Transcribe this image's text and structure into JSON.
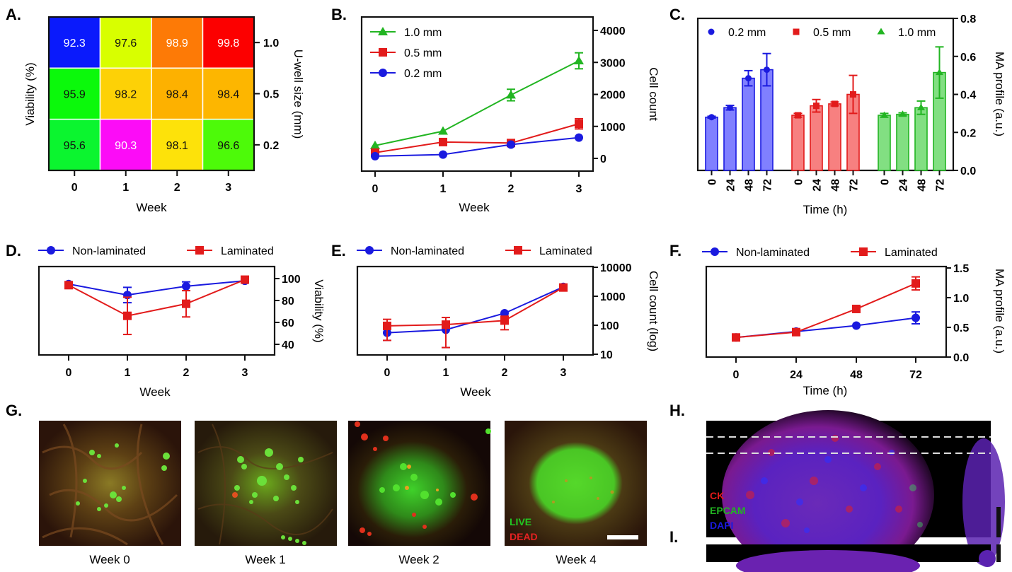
{
  "panel_labels": {
    "A": "A.",
    "B": "B.",
    "C": "C.",
    "D": "D.",
    "E": "E.",
    "F": "F.",
    "G": "G.",
    "H": "H.",
    "I": "I."
  },
  "colors": {
    "blue": "#1a1adf",
    "red": "#e21b1b",
    "green": "#22b522",
    "blue_bar": "#8080ff",
    "red_bar": "#f78080",
    "green_bar": "#82df82"
  },
  "chart_data": [
    {
      "id": "A",
      "type": "heatmap",
      "title": "",
      "xlabel": "Week",
      "ylabel_left": "Viability (%)",
      "ylabel_right": "U-well size (mm)",
      "x_categories": [
        "0",
        "1",
        "2",
        "3"
      ],
      "y_categories": [
        "1.0",
        "0.5",
        "0.2"
      ],
      "values": [
        [
          92.3,
          97.6,
          98.9,
          99.8
        ],
        [
          95.9,
          98.2,
          98.4,
          98.4
        ],
        [
          95.6,
          90.3,
          98.1,
          96.6
        ]
      ],
      "cell_colors": [
        [
          "#0a1afc",
          "#d8ff00",
          "#fd7a06",
          "#fc0000"
        ],
        [
          "#0bf90b",
          "#fdd106",
          "#fdb100",
          "#fdb600"
        ],
        [
          "#0bf52f",
          "#fc0cf7",
          "#fde20a",
          "#4dfa09"
        ]
      ],
      "text_colors": [
        [
          "#ffffff",
          "#111111",
          "#ffffff",
          "#ffffff"
        ],
        [
          "#111111",
          "#111111",
          "#111111",
          "#111111"
        ],
        [
          "#111111",
          "#ffffff",
          "#111111",
          "#111111"
        ]
      ]
    },
    {
      "id": "B",
      "type": "line",
      "xlabel": "Week",
      "ylabel": "Cell count",
      "x": [
        0,
        1,
        2,
        3
      ],
      "x_ticks": [
        "0",
        "1",
        "2",
        "3"
      ],
      "y_ticks": [
        "0",
        "1000",
        "2000",
        "3000",
        "4000"
      ],
      "ylim": [
        -400,
        4400
      ],
      "legend": "top-left",
      "series": [
        {
          "name": "1.0 mm",
          "marker": "triangle",
          "color": "#22b522",
          "values": [
            400,
            850,
            1980,
            3050
          ],
          "errors": [
            0,
            0,
            180,
            250
          ]
        },
        {
          "name": "0.5 mm",
          "marker": "square",
          "color": "#e21b1b",
          "values": [
            180,
            510,
            480,
            1080
          ],
          "errors": [
            0,
            0,
            0,
            160
          ]
        },
        {
          "name": "0.2 mm",
          "marker": "circle",
          "color": "#1a1adf",
          "values": [
            70,
            120,
            430,
            650
          ],
          "errors": [
            0,
            0,
            0,
            0
          ]
        }
      ]
    },
    {
      "id": "C",
      "type": "bar",
      "xlabel": "Time (h)",
      "ylabel": "MA profile (a.u.)",
      "ylim": [
        0,
        0.8
      ],
      "y_ticks": [
        "0.0",
        "0.2",
        "0.4",
        "0.6",
        "0.8"
      ],
      "legend": "top",
      "categories": [
        "0",
        "24",
        "48",
        "72"
      ],
      "series": [
        {
          "name": "0.2 mm",
          "marker": "circle",
          "color": "#1a1adf",
          "fill": "#8080ff",
          "values": [
            0.28,
            0.33,
            0.485,
            0.53
          ],
          "errors": [
            0.005,
            0.012,
            0.04,
            0.085
          ]
        },
        {
          "name": "0.5 mm",
          "marker": "square",
          "color": "#e21b1b",
          "fill": "#f78080",
          "values": [
            0.29,
            0.34,
            0.35,
            0.4
          ],
          "errors": [
            0.01,
            0.033,
            0.01,
            0.1
          ]
        },
        {
          "name": "1.0 mm",
          "marker": "triangle",
          "color": "#22b522",
          "fill": "#82df82",
          "values": [
            0.29,
            0.295,
            0.33,
            0.515
          ],
          "errors": [
            0.01,
            0.008,
            0.035,
            0.135
          ]
        }
      ]
    },
    {
      "id": "D",
      "type": "line",
      "xlabel": "Week",
      "ylabel": "Viability (%)",
      "x": [
        0,
        1,
        2,
        3
      ],
      "x_ticks": [
        "0",
        "1",
        "2",
        "3"
      ],
      "y_ticks": [
        "40",
        "60",
        "80",
        "100"
      ],
      "ylim": [
        30,
        108
      ],
      "legend": "top",
      "series": [
        {
          "name": "Non-laminated",
          "marker": "circle",
          "color": "#1a1adf",
          "values": [
            95,
            85,
            93,
            98
          ],
          "errors": [
            2,
            7,
            4,
            1
          ]
        },
        {
          "name": "Laminated",
          "marker": "square",
          "color": "#e21b1b",
          "values": [
            94,
            66,
            77,
            99
          ],
          "errors": [
            3,
            17,
            12,
            1
          ]
        }
      ]
    },
    {
      "id": "E",
      "type": "line",
      "yscale": "log",
      "xlabel": "Week",
      "ylabel": "Cell count (log)",
      "x": [
        0,
        1,
        2,
        3
      ],
      "x_ticks": [
        "0",
        "1",
        "2",
        "3"
      ],
      "y_ticks": [
        "10",
        "100",
        "1000",
        "10000"
      ],
      "ylim": [
        10,
        10000
      ],
      "legend": "top",
      "series": [
        {
          "name": "Non-laminated",
          "marker": "circle",
          "color": "#1a1adf",
          "values": [
            55,
            70,
            260,
            2100
          ],
          "errors_low": [
            25,
            53,
            0,
            0
          ],
          "errors_high": [
            0,
            40,
            0,
            0
          ]
        },
        {
          "name": "Laminated",
          "marker": "square",
          "color": "#e21b1b",
          "values": [
            95,
            105,
            145,
            2000
          ],
          "errors_low": [
            65,
            88,
            75,
            0
          ],
          "errors_high": [
            65,
            80,
            60,
            0
          ]
        }
      ]
    },
    {
      "id": "F",
      "type": "line",
      "xlabel": "Time (h)",
      "ylabel": "MA profile (a.u.)",
      "x": [
        0,
        24,
        48,
        72
      ],
      "x_ticks": [
        "0",
        "24",
        "48",
        "72"
      ],
      "y_ticks": [
        "0.0",
        "0.5",
        "1.0",
        "1.5"
      ],
      "ylim": [
        0,
        1.5
      ],
      "legend": "top",
      "series": [
        {
          "name": "Non-laminated",
          "marker": "circle",
          "color": "#1a1adf",
          "values": [
            0.33,
            0.43,
            0.53,
            0.66
          ],
          "errors": [
            0,
            0,
            0,
            0.1
          ]
        },
        {
          "name": "Laminated",
          "marker": "square",
          "color": "#e21b1b",
          "values": [
            0.33,
            0.42,
            0.81,
            1.24
          ],
          "errors": [
            0.03,
            0.03,
            0.04,
            0.11
          ]
        }
      ]
    }
  ],
  "micrographs": {
    "captions": [
      "Week 0",
      "Week 1",
      "Week 2",
      "Week 4"
    ],
    "stain_live": "LIVE",
    "stain_dead": "DEAD",
    "stain_live_color": "#22c722",
    "stain_dead_color": "#e52222"
  },
  "confocal": {
    "ck": "CK",
    "epcam": "EPCAM",
    "dapi": "DAPI",
    "ck_color": "#e01a1a",
    "epcam_color": "#22b522",
    "dapi_color": "#1a1adf"
  }
}
